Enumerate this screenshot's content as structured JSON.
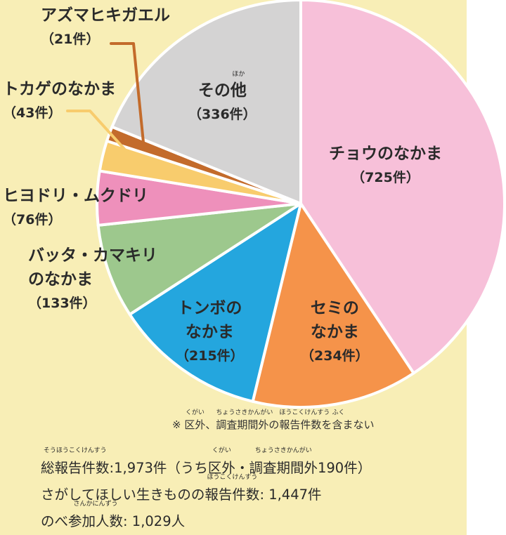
{
  "chart_data": {
    "type": "pie",
    "start_angle_deg": 0,
    "direction": "clockwise",
    "slices": [
      {
        "label": "チョウのなかま",
        "count_label": "（725件）",
        "value": 725,
        "color": "#f7c0d9"
      },
      {
        "label": "セミのなかま",
        "count_label": "（234件）",
        "value": 234,
        "color": "#f5934a"
      },
      {
        "label": "トンボのなかま",
        "count_label": "（215件）",
        "value": 215,
        "color": "#24a6de"
      },
      {
        "label": "バッタ・カマキリのなかま",
        "count_label": "（133件）",
        "value": 133,
        "color": "#9dc88d"
      },
      {
        "label": "ヒヨドリ・ムクドリ",
        "count_label": "（76件）",
        "value": 76,
        "color": "#ee90bb"
      },
      {
        "label": "トカゲのなかま",
        "count_label": "（43件）",
        "value": 43,
        "color": "#f8cc6d"
      },
      {
        "label": "アズマヒキガエル",
        "count_label": "（21件）",
        "value": 21,
        "color": "#c36b2b"
      },
      {
        "label": "その他",
        "count_label": "（336件）",
        "value": 336,
        "color": "#d4d3d3"
      }
    ]
  },
  "labels": {
    "butterfly": {
      "name": "チョウのなかま",
      "count": "（725件）"
    },
    "cicada": {
      "line1": "セミの",
      "line2": "なかま",
      "count": "（234件）"
    },
    "dragonfly": {
      "line1": "トンボの",
      "line2": "なかま",
      "count": "（215件）"
    },
    "grasshopper": {
      "line1": "バッタ・カマキリ",
      "line2": "のなかま",
      "count": "（133件）"
    },
    "bird": {
      "name": "ヒヨドリ・ムクドリ",
      "count": "（76件）"
    },
    "lizard": {
      "name": "トカゲのなかま",
      "count": "（43件）"
    },
    "toad": {
      "name": "アズマヒキガエル",
      "count": "（21件）"
    },
    "other": {
      "pre": "その",
      "kanji": "他",
      "kanji_ruby": "ほか",
      "count": "（336件）"
    }
  },
  "note": {
    "prefix": "※ ",
    "kugai": "区外",
    "kugai_ruby": "くがい",
    "sep": "、",
    "chousa": "調査期間外",
    "chousa_ruby": "ちょうさきかんがい",
    "mid": "の",
    "houkoku": "報告件数",
    "houkoku_ruby": "ほうこくけんすう",
    "wo": "を",
    "fuku": "含",
    "fuku_ruby": "ふく",
    "suffix": "まない"
  },
  "summary": {
    "line1": {
      "total": "総報告件数",
      "total_ruby": "そうほうこくけんすう",
      "value": ":1,973件（うち",
      "kugai": "区外",
      "kugai_ruby": "くがい",
      "dot": "・",
      "chousa": "調査期間外",
      "chousa_ruby": "ちょうさきかんがい",
      "tail": "190件）"
    },
    "line2": {
      "pre": "さがしてほしい生きものの",
      "houkoku": "報告件数",
      "houkoku_ruby": "ほうこくけんすう",
      "tail": ": 1,447件"
    },
    "line3": {
      "pre": "のべ",
      "sanka": "参加人数",
      "sanka_ruby": "さんかにんずう",
      "tail": ": 1,029人"
    }
  }
}
